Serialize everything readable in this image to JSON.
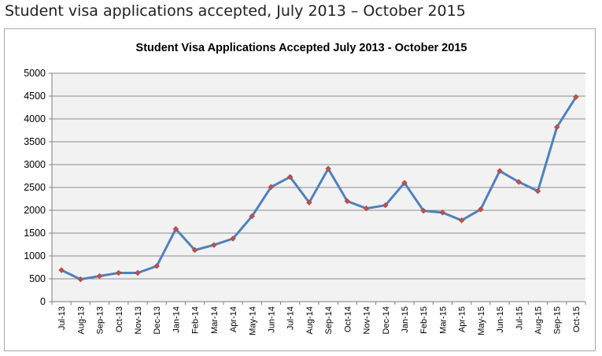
{
  "page": {
    "title": "Student visa applications accepted, July 2013 – October 2015"
  },
  "chart_data": {
    "type": "line",
    "title": "Student Visa Applications Accepted July 2013  - October 2015",
    "xlabel": "",
    "ylabel": "",
    "ylim": [
      0,
      5000
    ],
    "yticks": [
      "0",
      "500",
      "1000",
      "1500",
      "2000",
      "2500",
      "3000",
      "3500",
      "4000",
      "4500",
      "5000"
    ],
    "grid": true,
    "legend": "none",
    "categories": [
      "Jul-13",
      "Aug-13",
      "Sep-13",
      "Oct-13",
      "Nov-13",
      "Dec-13",
      "Jan-14",
      "Feb-14",
      "Mar-14",
      "Apr-14",
      "May-14",
      "Jun-14",
      "Jul-14",
      "Aug-14",
      "Sep-14",
      "Oct-14",
      "Nov-14",
      "Dec-14",
      "Jan-15",
      "Feb-15",
      "Mar-15",
      "Apr-15",
      "May-15",
      "Jun-15",
      "Jul-15",
      "Aug-15",
      "Sep-15",
      "Oct-15"
    ],
    "series": [
      {
        "values": [
          690,
          490,
          560,
          630,
          630,
          780,
          1590,
          1130,
          1240,
          1380,
          1870,
          2510,
          2730,
          2170,
          2910,
          2200,
          2040,
          2110,
          2600,
          1990,
          1950,
          1780,
          2020,
          2860,
          2620,
          2420,
          3820,
          4480
        ],
        "color": "#4f81bd",
        "marker_color": "#c0504d"
      }
    ],
    "colors": {
      "plot_background": "#f2f2f2",
      "gridline": "#8c8c8c",
      "axis": "#7f7f7f"
    }
  }
}
